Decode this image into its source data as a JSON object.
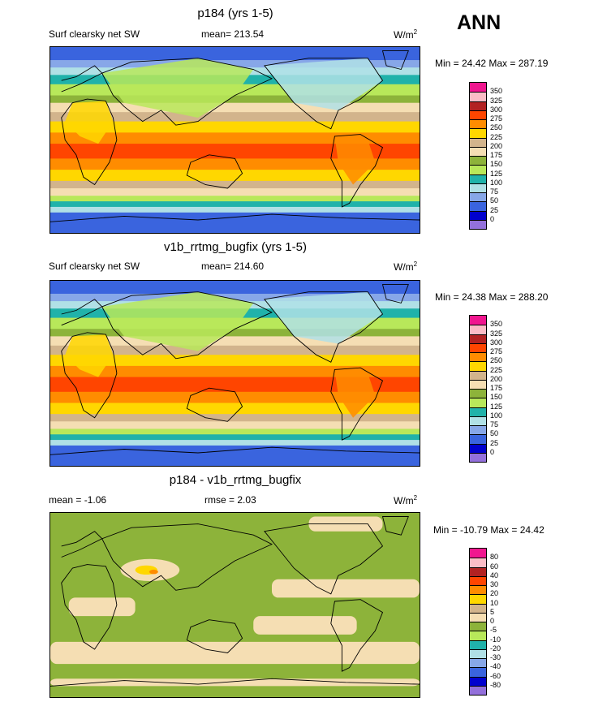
{
  "annual_label": "ANN",
  "panels": [
    {
      "title": "p184 (yrs 1-5)",
      "left_label": "Surf clearsky net SW",
      "center_label": "mean= 213.54",
      "units_base": "W/m",
      "units_sup": "2",
      "minmax": "Min =  24.42 Max = 287.19",
      "palette": "abs",
      "colorbar_labels": [
        "350",
        "325",
        "300",
        "275",
        "250",
        "225",
        "200",
        "175",
        "150",
        "125",
        "100",
        "75",
        "50",
        "25",
        "0"
      ]
    },
    {
      "title": "v1b_rrtmg_bugfix (yrs 1-5)",
      "left_label": "Surf clearsky net SW",
      "center_label": "mean= 214.60",
      "units_base": "W/m",
      "units_sup": "2",
      "minmax": "Min =  24.38 Max = 288.20",
      "palette": "abs",
      "colorbar_labels": [
        "350",
        "325",
        "300",
        "275",
        "250",
        "225",
        "200",
        "175",
        "150",
        "125",
        "100",
        "75",
        "50",
        "25",
        "0"
      ]
    },
    {
      "title": "p184 - v1b_rrtmg_bugfix",
      "left_label": "mean =  -1.06",
      "center_label": "rmse =   2.03",
      "units_base": "W/m",
      "units_sup": "2",
      "minmax": "Min = -10.79 Max =  24.42",
      "palette": "diff",
      "colorbar_labels": [
        "80",
        "60",
        "40",
        "30",
        "20",
        "10",
        "5",
        "0",
        "-5",
        "-10",
        "-20",
        "-30",
        "-40",
        "-60",
        "-80"
      ]
    }
  ],
  "colors": {
    "abs_palette": [
      "#f0168f",
      "#fbbcc6",
      "#b22222",
      "#ff4500",
      "#ff8c00",
      "#ffd700",
      "#d2b48c",
      "#f5deb3",
      "#8db33a",
      "#b8e85a",
      "#20b2aa",
      "#b0e0e6",
      "#87a7e8",
      "#3a64de",
      "#0000cd",
      "#9370db"
    ],
    "diff_palette": [
      "#f0168f",
      "#fbbcc6",
      "#b22222",
      "#ff4500",
      "#ff8c00",
      "#ffd700",
      "#d2b48c",
      "#f5deb3",
      "#8db33a",
      "#b8e85a",
      "#20b2aa",
      "#b0e0e6",
      "#87a7e8",
      "#3a64de",
      "#0000cd",
      "#9370db"
    ],
    "ocean_polar": "#3a64de"
  },
  "chart_data": [
    {
      "type": "heatmap",
      "title": "p184 (yrs 1-5)",
      "subtitle": "Surf clearsky net SW",
      "mean": 213.54,
      "min": 24.42,
      "max": 287.19,
      "units": "W/m2",
      "levels": [
        0,
        25,
        50,
        75,
        100,
        125,
        150,
        175,
        200,
        225,
        250,
        275,
        300,
        325,
        350
      ]
    },
    {
      "type": "heatmap",
      "title": "v1b_rrtmg_bugfix (yrs 1-5)",
      "subtitle": "Surf clearsky net SW",
      "mean": 214.6,
      "min": 24.38,
      "max": 288.2,
      "units": "W/m2",
      "levels": [
        0,
        25,
        50,
        75,
        100,
        125,
        150,
        175,
        200,
        225,
        250,
        275,
        300,
        325,
        350
      ]
    },
    {
      "type": "heatmap",
      "title": "p184 - v1b_rrtmg_bugfix",
      "mean": -1.06,
      "rmse": 2.03,
      "min": -10.79,
      "max": 24.42,
      "units": "W/m2",
      "levels": [
        -80,
        -60,
        -40,
        -30,
        -20,
        -10,
        -5,
        0,
        5,
        10,
        20,
        30,
        40,
        60,
        80
      ]
    }
  ]
}
